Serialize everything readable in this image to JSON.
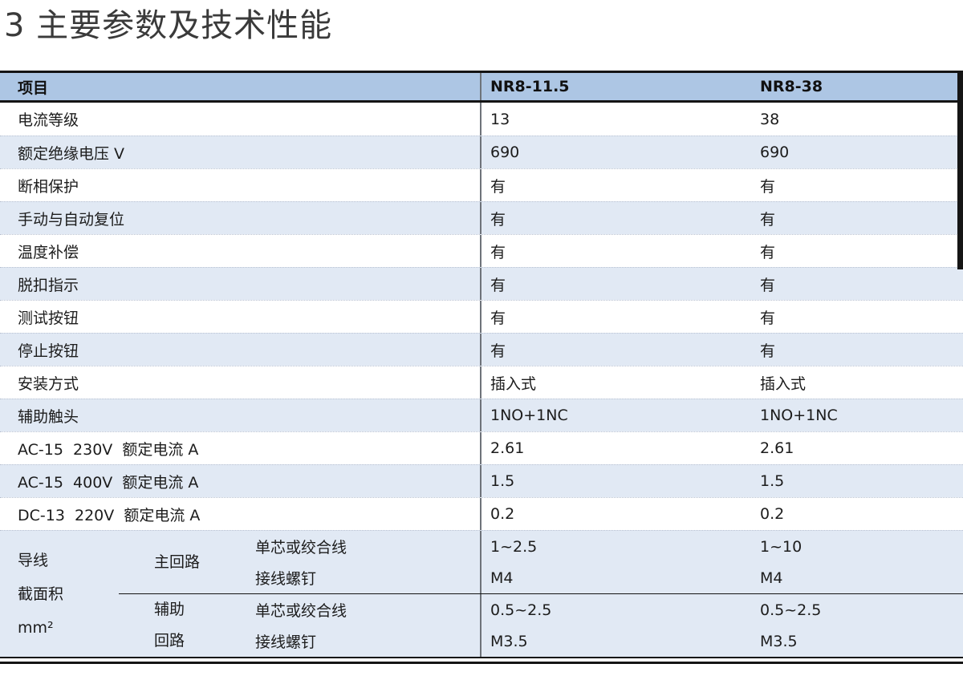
{
  "page_title": "3 主要参数及技术性能",
  "colors": {
    "header_bg": "#adc6e4",
    "alt_row_bg": "#e1e9f4",
    "rule_black": "#141414",
    "divider_gray": "#6e737a"
  },
  "table": {
    "columns": [
      {
        "label": "项目"
      },
      {
        "label": "NR8-11.5"
      },
      {
        "label": "NR8-38"
      }
    ],
    "rows": [
      {
        "label": "电流等级",
        "nr8_11_5": "13",
        "nr8_38": "38"
      },
      {
        "label": "额定绝缘电压 V",
        "nr8_11_5": "690",
        "nr8_38": "690"
      },
      {
        "label": "断相保护",
        "nr8_11_5": "有",
        "nr8_38": "有"
      },
      {
        "label": "手动与自动复位",
        "nr8_11_5": "有",
        "nr8_38": "有"
      },
      {
        "label": "温度补偿",
        "nr8_11_5": "有",
        "nr8_38": "有"
      },
      {
        "label": "脱扣指示",
        "nr8_11_5": "有",
        "nr8_38": "有"
      },
      {
        "label": "测试按钮",
        "nr8_11_5": "有",
        "nr8_38": "有"
      },
      {
        "label": "停止按钮",
        "nr8_11_5": "有",
        "nr8_38": "有"
      },
      {
        "label": "安装方式",
        "nr8_11_5": "插入式",
        "nr8_38": "插入式"
      },
      {
        "label": "辅助触头",
        "nr8_11_5": "1NO+1NC",
        "nr8_38": "1NO+1NC"
      },
      {
        "label": "AC-15  230V  额定电流 A",
        "nr8_11_5": "2.61",
        "nr8_38": "2.61"
      },
      {
        "label": "AC-15  400V  额定电流 A",
        "nr8_11_5": "1.5",
        "nr8_38": "1.5"
      },
      {
        "label": "DC-13  220V  额定电流 A",
        "nr8_11_5": "0.2",
        "nr8_38": "0.2"
      }
    ],
    "wire_group": {
      "label": "导线\n截面积\nmm²",
      "sections": [
        {
          "circuit": "主回路",
          "rows": [
            {
              "type": "单芯或绞合线",
              "nr8_11_5": "1~2.5",
              "nr8_38": "1~10"
            },
            {
              "type": "接线螺钉",
              "nr8_11_5": "M4",
              "nr8_38": "M4"
            }
          ]
        },
        {
          "circuit": "辅助\n回路",
          "rows": [
            {
              "type": "单芯或绞合线",
              "nr8_11_5": "0.5~2.5",
              "nr8_38": "0.5~2.5"
            },
            {
              "type": "接线螺钉",
              "nr8_11_5": "M3.5",
              "nr8_38": "M3.5"
            }
          ]
        }
      ]
    }
  }
}
